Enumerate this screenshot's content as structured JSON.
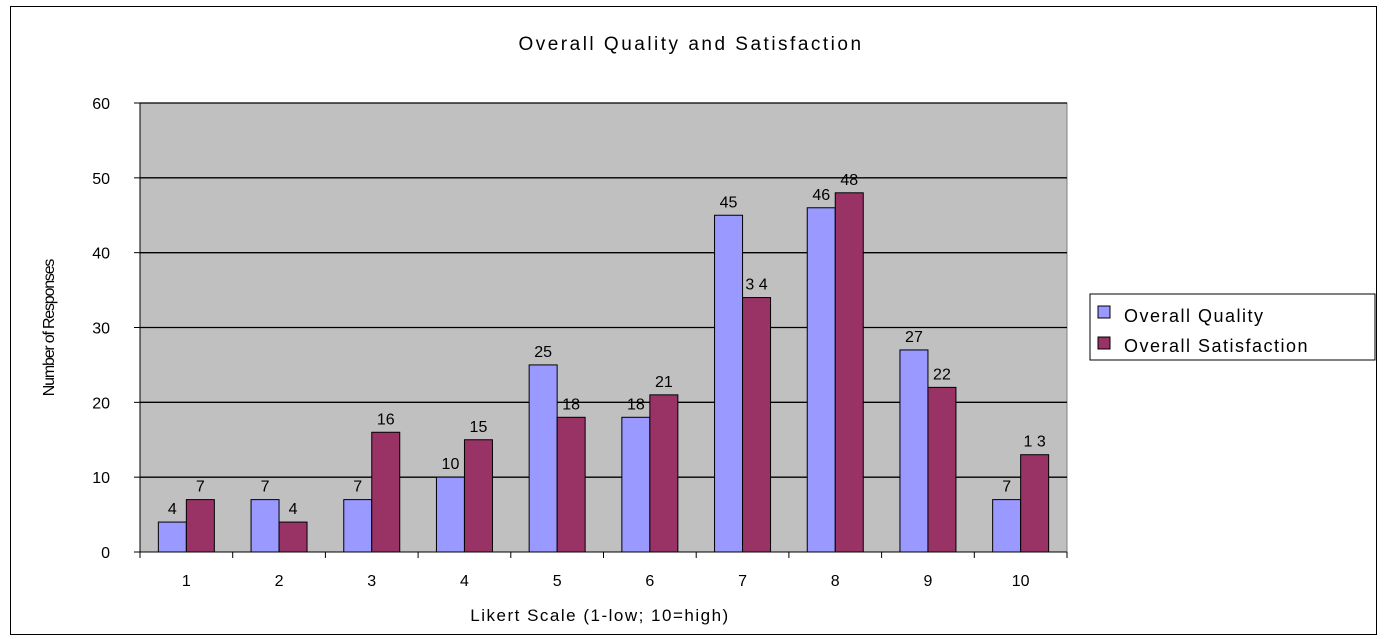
{
  "chart_data": {
    "type": "bar",
    "title": "Overall Quality and Satisfaction",
    "xlabel": "Likert Scale (1-low; 10=high)",
    "ylabel": "Number of Responses",
    "categories": [
      "1",
      "2",
      "3",
      "4",
      "5",
      "6",
      "7",
      "8",
      "9",
      "10"
    ],
    "series": [
      {
        "name": "Overall Quality",
        "color": "#9999ff",
        "values": [
          4,
          7,
          7,
          10,
          25,
          18,
          45,
          46,
          27,
          7
        ],
        "labels": [
          "4",
          "7",
          "7",
          "10",
          "25",
          "18",
          "45",
          "46",
          "27",
          "7"
        ]
      },
      {
        "name": "Overall Satisfaction",
        "color": "#993366",
        "values": [
          7,
          4,
          16,
          15,
          18,
          21,
          34,
          48,
          22,
          13
        ],
        "labels": [
          "7",
          "4",
          "16",
          "15",
          "18",
          "21",
          "3 4",
          "48",
          "22",
          "1 3"
        ]
      }
    ],
    "ylim": [
      0,
      60
    ],
    "yticks": [
      "0",
      "10",
      "20",
      "30",
      "40",
      "50",
      "60"
    ],
    "grid": true,
    "plot_background": "#c0c0c0",
    "legend_position": "right"
  }
}
